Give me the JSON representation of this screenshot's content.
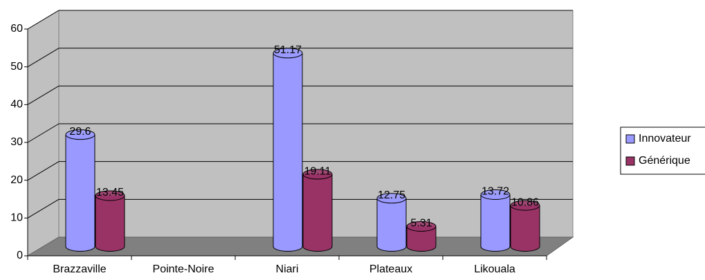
{
  "chart_data": {
    "type": "bar3d",
    "categories": [
      "Brazzaville",
      "Pointe-Noire",
      "Niari",
      "Plateaux",
      "Likouala"
    ],
    "series": [
      {
        "name": "Innovateur",
        "color": "#9999ff",
        "values": [
          29.6,
          null,
          51.17,
          12.75,
          13.72
        ]
      },
      {
        "name": "Générique",
        "color": "#993366",
        "values": [
          13.45,
          null,
          19.11,
          5.31,
          10.86
        ]
      }
    ],
    "ylim": [
      0,
      60
    ],
    "yticks": [
      0,
      10,
      20,
      30,
      40,
      50,
      60
    ],
    "grid": true,
    "legend": "right",
    "data_labels": true
  }
}
